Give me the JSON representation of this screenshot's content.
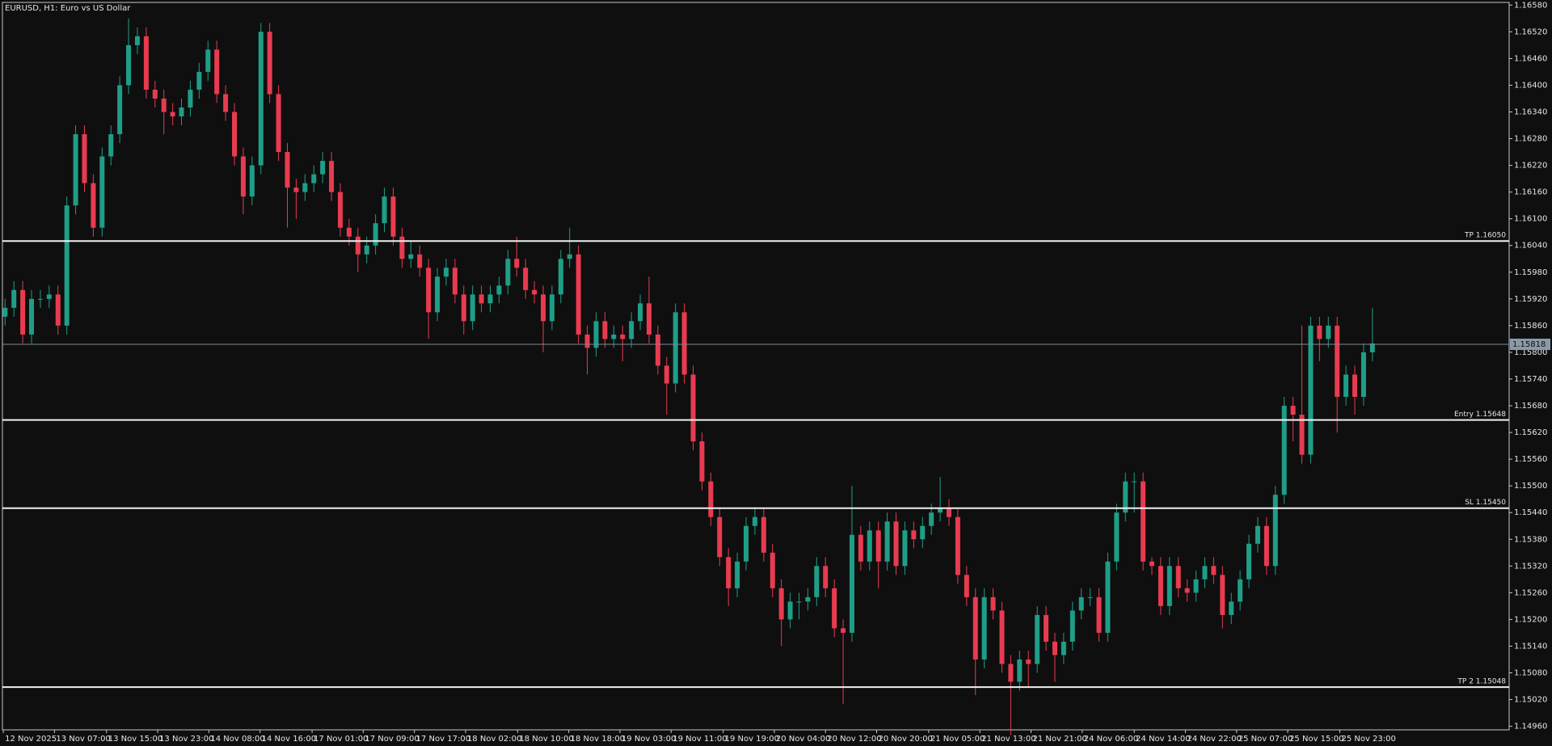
{
  "chart_data": {
    "type": "candlestick",
    "title": "EURUSD, H1:  Euro vs US Dollar",
    "up_color": "#1f9e87",
    "down_color": "#e83b50",
    "open": [
      1.1588,
      1.159,
      1.1594,
      1.1584,
      1.1592,
      1.1592,
      1.1593,
      1.1586,
      1.1613,
      1.1629,
      1.1618,
      1.1608,
      1.1624,
      1.1629,
      1.164,
      1.1649,
      1.1651,
      1.1639,
      1.1637,
      1.1634,
      1.1633,
      1.1635,
      1.1639,
      1.1643,
      1.1648,
      1.1638,
      1.1634,
      1.1624,
      1.1615,
      1.1622,
      1.1652,
      1.1638,
      1.1625,
      1.1617,
      1.1616,
      1.1618,
      1.162,
      1.1623,
      1.1616,
      1.1608,
      1.1606,
      1.1602,
      1.1604,
      1.1609,
      1.1615,
      1.1606,
      1.1601,
      1.1602,
      1.1599,
      1.1589,
      1.1597,
      1.1599,
      1.1593,
      1.1587,
      1.1593,
      1.1591,
      1.1593,
      1.1595,
      1.1601,
      1.1599,
      1.1594,
      1.1593,
      1.1587,
      1.1593,
      1.1601,
      1.1602,
      1.1584,
      1.1581,
      1.1587,
      1.1583,
      1.1584,
      1.1583,
      1.1587,
      1.1591,
      1.1584,
      1.1577,
      1.1573,
      1.1589,
      1.1575,
      1.156,
      1.1551,
      1.1543,
      1.1534,
      1.1527,
      1.1533,
      1.1541,
      1.1543,
      1.1535,
      1.1527,
      1.152,
      1.1524,
      1.1524,
      1.1525,
      1.1532,
      1.1527,
      1.1518,
      1.1517,
      1.1539,
      1.1533,
      1.154,
      1.1533,
      1.1542,
      1.1532,
      1.154,
      1.1538,
      1.1541,
      1.1544,
      1.1545,
      1.1543,
      1.153,
      1.1525,
      1.1511,
      1.1525,
      1.1522,
      1.151,
      1.1506,
      1.1511,
      1.151,
      1.1521,
      1.1515,
      1.1512,
      1.1515,
      1.1522,
      1.1525,
      1.1525,
      1.1517,
      1.1533,
      1.1544,
      1.1551,
      1.1551,
      1.1533,
      1.1532,
      1.1523,
      1.1532,
      1.1527,
      1.1526,
      1.1529,
      1.1532,
      1.153,
      1.1521,
      1.1524,
      1.1529,
      1.1537,
      1.1541,
      1.1532,
      1.1548,
      1.1568,
      1.1566,
      1.1557,
      1.1586,
      1.1583,
      1.1586,
      1.157,
      1.1575,
      1.157,
      1.158
    ],
    "high": [
      1.1592,
      1.1596,
      1.1596,
      1.1594,
      1.1594,
      1.1595,
      1.1595,
      1.1615,
      1.1631,
      1.1631,
      1.162,
      1.1626,
      1.1631,
      1.1642,
      1.1655,
      1.1653,
      1.1653,
      1.1641,
      1.1639,
      1.1636,
      1.1637,
      1.1641,
      1.1645,
      1.165,
      1.165,
      1.164,
      1.1636,
      1.1626,
      1.1624,
      1.1654,
      1.1654,
      1.164,
      1.1627,
      1.1619,
      1.162,
      1.1622,
      1.1625,
      1.1625,
      1.1618,
      1.161,
      1.1608,
      1.1606,
      1.1611,
      1.1617,
      1.1617,
      1.1608,
      1.1605,
      1.1604,
      1.1601,
      1.1599,
      1.1601,
      1.1601,
      1.1595,
      1.1595,
      1.1595,
      1.1595,
      1.1597,
      1.1603,
      1.1606,
      1.1601,
      1.1596,
      1.1595,
      1.1595,
      1.1603,
      1.1608,
      1.1604,
      1.1586,
      1.1589,
      1.1589,
      1.1586,
      1.1586,
      1.1589,
      1.1593,
      1.1597,
      1.1586,
      1.1579,
      1.1591,
      1.1591,
      1.1577,
      1.1562,
      1.1553,
      1.1545,
      1.1536,
      1.1535,
      1.1543,
      1.1545,
      1.1545,
      1.1537,
      1.1529,
      1.1526,
      1.1526,
      1.1527,
      1.1534,
      1.1534,
      1.1529,
      1.152,
      1.155,
      1.1541,
      1.1542,
      1.1542,
      1.1544,
      1.1544,
      1.1542,
      1.1542,
      1.1543,
      1.1546,
      1.1552,
      1.1547,
      1.1545,
      1.1532,
      1.1527,
      1.1527,
      1.1527,
      1.1524,
      1.1512,
      1.1513,
      1.1513,
      1.1523,
      1.1523,
      1.1517,
      1.1517,
      1.1524,
      1.1527,
      1.1527,
      1.1527,
      1.1535,
      1.1546,
      1.1553,
      1.1553,
      1.1553,
      1.1534,
      1.1534,
      1.1534,
      1.1534,
      1.1529,
      1.1531,
      1.1534,
      1.1534,
      1.1532,
      1.1526,
      1.1531,
      1.1539,
      1.1543,
      1.1543,
      1.155,
      1.157,
      1.157,
      1.1586,
      1.1588,
      1.1588,
      1.1588,
      1.1588,
      1.1577,
      1.1577,
      1.1582,
      1.159
    ],
    "low": [
      1.1586,
      1.1588,
      1.1582,
      1.1582,
      1.159,
      1.159,
      1.1584,
      1.1584,
      1.1611,
      1.1616,
      1.1606,
      1.1606,
      1.1622,
      1.1627,
      1.1638,
      1.1647,
      1.1637,
      1.1635,
      1.1629,
      1.1631,
      1.1631,
      1.1633,
      1.1637,
      1.1641,
      1.1636,
      1.1632,
      1.1622,
      1.1611,
      1.1613,
      1.162,
      1.1636,
      1.1623,
      1.1608,
      1.161,
      1.1614,
      1.1616,
      1.1618,
      1.1614,
      1.1606,
      1.1604,
      1.1598,
      1.16,
      1.1602,
      1.1607,
      1.1604,
      1.1599,
      1.1599,
      1.1597,
      1.1583,
      1.1587,
      1.1595,
      1.1591,
      1.1584,
      1.1585,
      1.1589,
      1.1589,
      1.1591,
      1.1593,
      1.1597,
      1.1592,
      1.1591,
      1.158,
      1.1585,
      1.1591,
      1.1599,
      1.1582,
      1.1575,
      1.1579,
      1.1581,
      1.1581,
      1.1578,
      1.1581,
      1.1585,
      1.1582,
      1.1575,
      1.1566,
      1.1571,
      1.1573,
      1.1558,
      1.1549,
      1.1541,
      1.1532,
      1.1523,
      1.1525,
      1.1531,
      1.1539,
      1.1533,
      1.1525,
      1.1514,
      1.1518,
      1.152,
      1.1522,
      1.1523,
      1.1525,
      1.1516,
      1.1501,
      1.1515,
      1.1531,
      1.1531,
      1.1527,
      1.1531,
      1.153,
      1.153,
      1.1536,
      1.1536,
      1.1539,
      1.1542,
      1.1541,
      1.1528,
      1.1523,
      1.1503,
      1.1509,
      1.152,
      1.1508,
      1.1494,
      1.1504,
      1.1505,
      1.1508,
      1.1513,
      1.1506,
      1.151,
      1.1513,
      1.152,
      1.1523,
      1.1515,
      1.1515,
      1.1531,
      1.1542,
      1.1544,
      1.1531,
      1.153,
      1.1521,
      1.1521,
      1.1525,
      1.1524,
      1.1524,
      1.1527,
      1.1528,
      1.1518,
      1.1519,
      1.1522,
      1.1527,
      1.1535,
      1.153,
      1.153,
      1.1546,
      1.156,
      1.1555,
      1.1555,
      1.1578,
      1.1581,
      1.1562,
      1.1568,
      1.1566,
      1.1568,
      1.1578
    ],
    "close": [
      1.159,
      1.1594,
      1.1584,
      1.1592,
      1.1592,
      1.1593,
      1.1586,
      1.1613,
      1.1629,
      1.1618,
      1.1608,
      1.1624,
      1.1629,
      1.164,
      1.1649,
      1.1651,
      1.1639,
      1.1637,
      1.1634,
      1.1633,
      1.1635,
      1.1639,
      1.1643,
      1.1648,
      1.1638,
      1.1634,
      1.1624,
      1.1615,
      1.1622,
      1.1652,
      1.1638,
      1.1625,
      1.1617,
      1.1616,
      1.1618,
      1.162,
      1.1623,
      1.1616,
      1.1608,
      1.1606,
      1.1602,
      1.1604,
      1.1609,
      1.1615,
      1.1606,
      1.1601,
      1.1602,
      1.1599,
      1.1589,
      1.1597,
      1.1599,
      1.1593,
      1.1587,
      1.1593,
      1.1591,
      1.1593,
      1.1595,
      1.1601,
      1.1599,
      1.1594,
      1.1593,
      1.1587,
      1.1593,
      1.1601,
      1.1602,
      1.1584,
      1.1581,
      1.1587,
      1.1583,
      1.1584,
      1.1583,
      1.1587,
      1.1591,
      1.1584,
      1.1577,
      1.1573,
      1.1589,
      1.1575,
      1.156,
      1.1551,
      1.1543,
      1.1534,
      1.1527,
      1.1533,
      1.1541,
      1.1543,
      1.1535,
      1.1527,
      1.152,
      1.1524,
      1.1524,
      1.1525,
      1.1532,
      1.1527,
      1.1518,
      1.1517,
      1.1539,
      1.1533,
      1.154,
      1.1533,
      1.1542,
      1.1532,
      1.154,
      1.1538,
      1.1541,
      1.1544,
      1.1545,
      1.1543,
      1.153,
      1.1525,
      1.1511,
      1.1525,
      1.1522,
      1.151,
      1.1506,
      1.1511,
      1.151,
      1.1521,
      1.1515,
      1.1512,
      1.1515,
      1.1522,
      1.1525,
      1.1525,
      1.1517,
      1.1533,
      1.1544,
      1.1551,
      1.1551,
      1.1533,
      1.1532,
      1.1523,
      1.1532,
      1.1527,
      1.1526,
      1.1529,
      1.1532,
      1.153,
      1.1521,
      1.1524,
      1.1529,
      1.1537,
      1.1541,
      1.1532,
      1.1548,
      1.1568,
      1.1566,
      1.1557,
      1.1586,
      1.1583,
      1.1586,
      1.157,
      1.1575,
      1.157,
      1.158,
      1.1582
    ],
    "xlim": [
      -0.3,
      170.5
    ],
    "xticks": [
      {
        "value": -0.2,
        "label": "12 Nov 2025"
      },
      {
        "value": 5.6,
        "label": "13 Nov 07:00"
      },
      {
        "value": 11.5,
        "label": "13 Nov 15:00"
      },
      {
        "value": 17.3,
        "label": "13 Nov 23:00"
      },
      {
        "value": 23.1,
        "label": "14 Nov 08:00"
      },
      {
        "value": 28.9,
        "label": "14 Nov 16:00"
      },
      {
        "value": 34.8,
        "label": "17 Nov 01:00"
      },
      {
        "value": 40.6,
        "label": "17 Nov 09:00"
      },
      {
        "value": 46.4,
        "label": "17 Nov 17:00"
      },
      {
        "value": 52.2,
        "label": "18 Nov 02:00"
      },
      {
        "value": 58.1,
        "label": "18 Nov 10:00"
      },
      {
        "value": 63.9,
        "label": "18 Nov 18:00"
      },
      {
        "value": 69.7,
        "label": "19 Nov 03:00"
      },
      {
        "value": 75.5,
        "label": "19 Nov 11:00"
      },
      {
        "value": 81.4,
        "label": "19 Nov 19:00"
      },
      {
        "value": 87.2,
        "label": "20 Nov 04:00"
      },
      {
        "value": 93.0,
        "label": "20 Nov 12:00"
      },
      {
        "value": 98.8,
        "label": "20 Nov 20:00"
      },
      {
        "value": 104.7,
        "label": "21 Nov 05:00"
      },
      {
        "value": 110.5,
        "label": "21 Nov 13:00"
      },
      {
        "value": 116.3,
        "label": "21 Nov 21:00"
      },
      {
        "value": 122.1,
        "label": "24 Nov 06:00"
      },
      {
        "value": 128.0,
        "label": "24 Nov 14:00"
      },
      {
        "value": 133.8,
        "label": "24 Nov 22:00"
      },
      {
        "value": 139.6,
        "label": "25 Nov 07:00"
      },
      {
        "value": 145.4,
        "label": "25 Nov 15:00"
      },
      {
        "value": 151.3,
        "label": "25 Nov 23:00"
      }
    ],
    "ylim": [
      1.14952,
      1.16586
    ],
    "yticks": [
      {
        "value": 1.1658,
        "label": "1.16580"
      },
      {
        "value": 1.1652,
        "label": "1.16520"
      },
      {
        "value": 1.1646,
        "label": "1.16460"
      },
      {
        "value": 1.164,
        "label": "1.16400"
      },
      {
        "value": 1.1634,
        "label": "1.16340"
      },
      {
        "value": 1.1628,
        "label": "1.16280"
      },
      {
        "value": 1.1622,
        "label": "1.16220"
      },
      {
        "value": 1.1616,
        "label": "1.16160"
      },
      {
        "value": 1.161,
        "label": "1.16100"
      },
      {
        "value": 1.1604,
        "label": "1.16040"
      },
      {
        "value": 1.1598,
        "label": "1.15980"
      },
      {
        "value": 1.1592,
        "label": "1.15920"
      },
      {
        "value": 1.1586,
        "label": "1.15860"
      },
      {
        "value": 1.158,
        "label": "1.15800"
      },
      {
        "value": 1.1574,
        "label": "1.15740"
      },
      {
        "value": 1.1568,
        "label": "1.15680"
      },
      {
        "value": 1.1562,
        "label": "1.15620"
      },
      {
        "value": 1.1556,
        "label": "1.15560"
      },
      {
        "value": 1.155,
        "label": "1.15500"
      },
      {
        "value": 1.1544,
        "label": "1.15440"
      },
      {
        "value": 1.1538,
        "label": "1.15380"
      },
      {
        "value": 1.1532,
        "label": "1.15320"
      },
      {
        "value": 1.1526,
        "label": "1.15260"
      },
      {
        "value": 1.152,
        "label": "1.15200"
      },
      {
        "value": 1.1514,
        "label": "1.15140"
      },
      {
        "value": 1.1508,
        "label": "1.15080"
      },
      {
        "value": 1.1502,
        "label": "1.15020"
      },
      {
        "value": 1.1496,
        "label": "1.14960"
      }
    ],
    "levels": [
      {
        "label": "TP 1.16050",
        "value": 1.1605
      },
      {
        "label": "Entry 1.15648",
        "value": 1.15648
      },
      {
        "label": "SL 1.15450",
        "value": 1.1545
      },
      {
        "label": "TP 2 1.15048",
        "value": 1.15048
      }
    ],
    "current_price": 1.15818
  }
}
